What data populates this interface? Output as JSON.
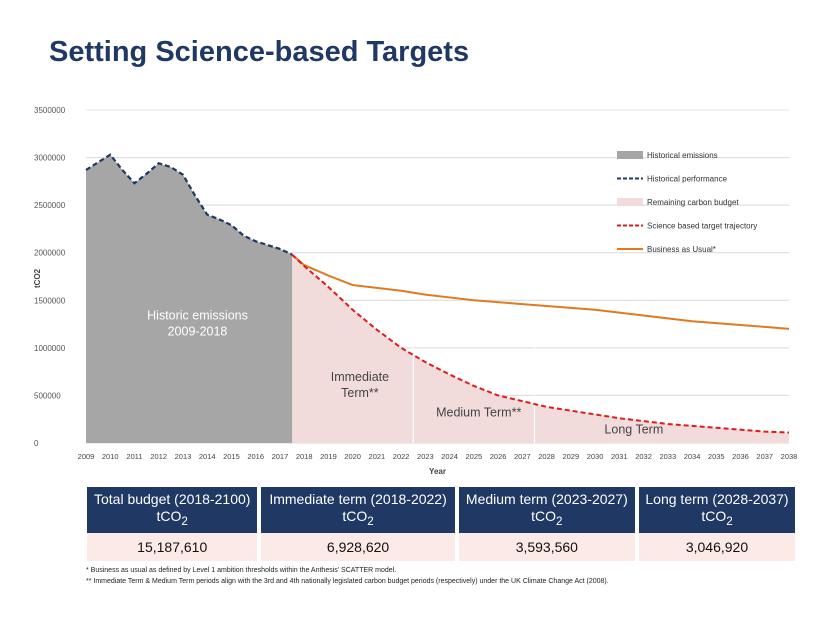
{
  "page_title": "Setting Science-based Targets",
  "chart_data": {
    "type": "area",
    "ylabel": "tCO2",
    "xlabel": "Year",
    "ylim": [
      0,
      3500000
    ],
    "yticks": [
      "3500000",
      "3000000",
      "2500000",
      "2000000",
      "1500000",
      "1000000",
      "500000",
      "0"
    ],
    "years": [
      "2009",
      "2010",
      "2011",
      "2012",
      "2013",
      "2014",
      "2015",
      "2016",
      "2017",
      "2018",
      "2019",
      "2020",
      "2021",
      "2022",
      "2023",
      "2024",
      "2025",
      "2026",
      "2027",
      "2028",
      "2029",
      "2030",
      "2031",
      "2032",
      "2033",
      "2034",
      "2035",
      "2036",
      "2037",
      "2038"
    ],
    "series": [
      {
        "name": "Historical emissions",
        "kind": "area",
        "color": "#a6a6a6",
        "x": [
          2009,
          2009.5,
          2010,
          2010.5,
          2011,
          2011.5,
          2012,
          2012.5,
          2013,
          2013.5,
          2014,
          2014.5,
          2015,
          2015.5,
          2016,
          2016.5,
          2017,
          2017.5
        ],
        "values": [
          2870000,
          2950000,
          3030000,
          2870000,
          2730000,
          2830000,
          2940000,
          2900000,
          2820000,
          2600000,
          2400000,
          2350000,
          2290000,
          2180000,
          2120000,
          2080000,
          2040000,
          1980000
        ]
      },
      {
        "name": "Historical performance",
        "kind": "dashed",
        "color": "#1f3864",
        "same_as": "Historical emissions"
      },
      {
        "name": "Remaining carbon budget",
        "kind": "area",
        "color": "#f2dcdb",
        "same_as": "Science based target trajectory"
      },
      {
        "name": "Science based target trajectory",
        "kind": "dashed",
        "color": "#e01b1b",
        "x": [
          2017.5,
          2018,
          2019,
          2020,
          2021,
          2022,
          2023,
          2024,
          2025,
          2026,
          2027,
          2028,
          2029,
          2030,
          2031,
          2032,
          2033,
          2034,
          2035,
          2036,
          2037,
          2038
        ],
        "values": [
          1980000,
          1860000,
          1640000,
          1400000,
          1190000,
          1000000,
          850000,
          720000,
          600000,
          500000,
          440000,
          380000,
          340000,
          300000,
          260000,
          230000,
          200000,
          180000,
          160000,
          140000,
          120000,
          110000
        ]
      },
      {
        "name": "Business as Usual*",
        "kind": "line",
        "color": "#e07a1f",
        "x": [
          2017.5,
          2018,
          2019,
          2020,
          2021,
          2022,
          2023,
          2024,
          2025,
          2026,
          2027,
          2028,
          2029,
          2030,
          2031,
          2032,
          2033,
          2034,
          2035,
          2036,
          2037,
          2038
        ],
        "values": [
          1980000,
          1870000,
          1760000,
          1660000,
          1630000,
          1600000,
          1560000,
          1530000,
          1500000,
          1480000,
          1460000,
          1440000,
          1420000,
          1400000,
          1370000,
          1340000,
          1310000,
          1280000,
          1260000,
          1240000,
          1220000,
          1200000
        ]
      }
    ],
    "annotations": [
      {
        "lines": [
          "Historic emissions",
          "2009-2018"
        ],
        "x": 2013.6,
        "y": 1300000
      },
      {
        "lines": [
          "Immediate",
          "Term**"
        ],
        "x": 2020.3,
        "y": 650000
      },
      {
        "lines": [
          "Medium Term**"
        ],
        "x": 2025.2,
        "y": 280000
      },
      {
        "lines": [
          "Long Term"
        ],
        "x": 2031.6,
        "y": 100000
      }
    ],
    "period_dividers": [
      2018,
      2023,
      2028
    ]
  },
  "table": {
    "headers": [
      {
        "line1": "Total budget (2018-2100)",
        "line2": "tCO",
        "sub": "2"
      },
      {
        "line1": "Immediate term (2018-2022)",
        "line2": "tCO",
        "sub": "2"
      },
      {
        "line1": "Medium term (2023-2027)",
        "line2": "tCO",
        "sub": "2"
      },
      {
        "line1": "Long term (2028-2037)",
        "line2": "tCO",
        "sub": "2"
      }
    ],
    "values": [
      "15,187,610",
      "6,928,620",
      "3,593,560",
      "3,046,920"
    ]
  },
  "footnotes": {
    "note1": "* Business as usual as defined by Level 1 ambition thresholds within the Anthesis' SCATTER model.",
    "note2": "** Immediate Term & Medium Term periods align with the 3rd and 4th nationally legislated carbon budget periods (respectively) under the UK Climate Change Act (2008)."
  }
}
